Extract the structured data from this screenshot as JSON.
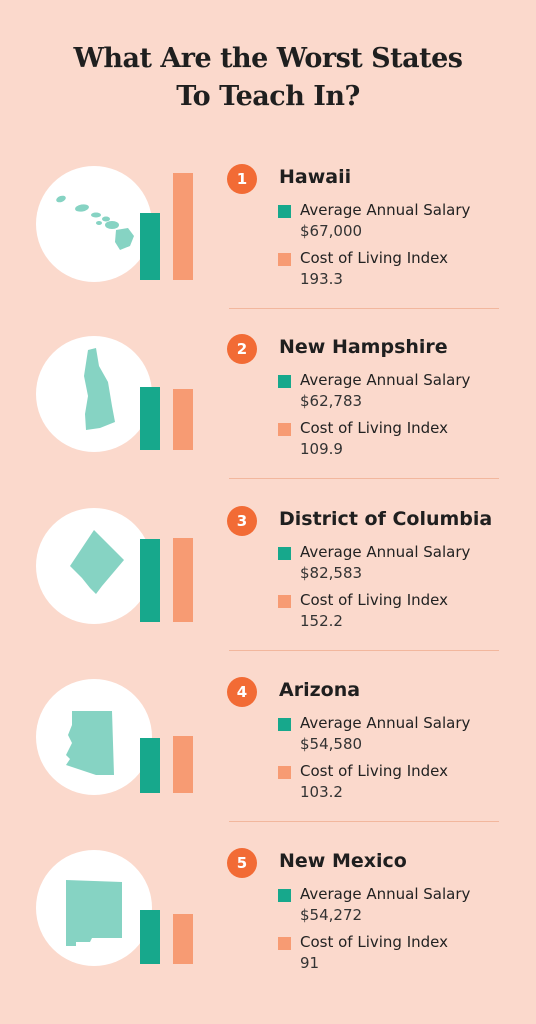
{
  "title_line1": "What Are the Worst States",
  "title_line2": "To Teach In?",
  "colors": {
    "salary": "#17a88c",
    "cost_of_living": "#f79b73",
    "badge": "#f26b35",
    "shape": "#86d3c3"
  },
  "chart_data": {
    "type": "bar",
    "title": "What Are the Worst States To Teach In?",
    "categories": [
      "Hawaii",
      "New Hampshire",
      "District of Columbia",
      "Arizona",
      "New Mexico"
    ],
    "ranks": [
      "1",
      "2",
      "3",
      "4",
      "5"
    ],
    "salary_label": "Average Annual Salary",
    "col_label": "Cost of Living Index",
    "series": [
      {
        "name": "Average Annual Salary",
        "values": [
          67000,
          62783,
          82583,
          54580,
          54272
        ],
        "display": [
          "$67,000",
          "$62,783",
          "$82,583",
          "$54,580",
          "$54,272"
        ]
      },
      {
        "name": "Cost of Living Index",
        "values": [
          193.3,
          109.9,
          152.2,
          103.2,
          91
        ],
        "display": [
          "193.3",
          "109.9",
          "152.2",
          "103.2",
          "91"
        ]
      }
    ]
  }
}
